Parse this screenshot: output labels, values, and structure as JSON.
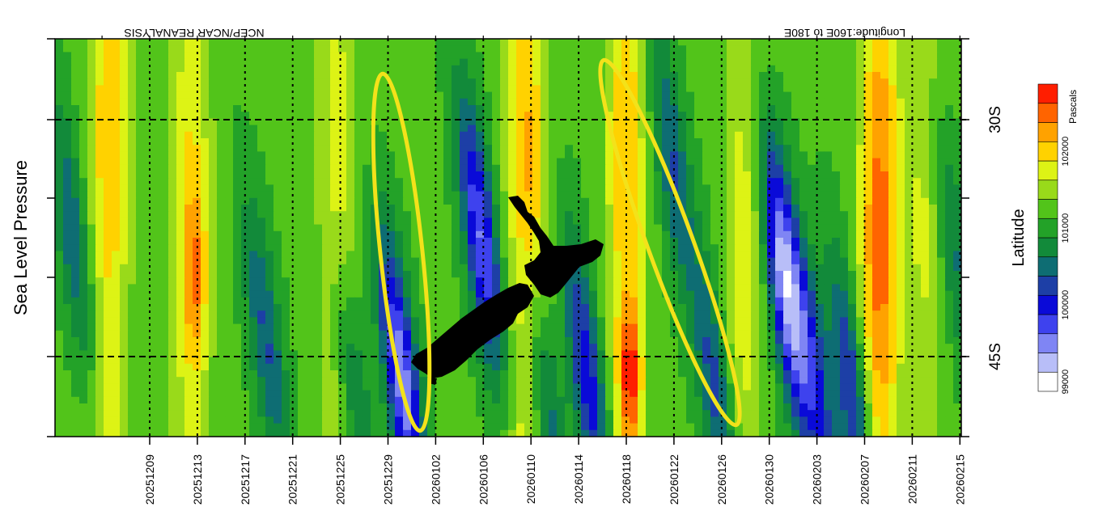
{
  "chart_data": {
    "type": "heatmap",
    "title_right": "Longitude:160E to 180E",
    "title_left": "NCEP/NCAR REANALYSIS",
    "y_title": "Sea Level Pressure",
    "latitude_title": "Latitude",
    "latitude_ticks": [
      "30S",
      "45S"
    ],
    "legend_unit": "Pascals",
    "legend_tick_labels": [
      "99000",
      "100000",
      "101000",
      "102000"
    ],
    "legend_levels": [
      99000,
      99250,
      99500,
      99750,
      100000,
      100250,
      100500,
      100750,
      101000,
      101250,
      101500,
      101750,
      102000,
      102250,
      102500,
      102750
    ],
    "legend_colors": [
      "#ffffff",
      "#b8bef8",
      "#7f85f4",
      "#3e42ee",
      "#0a0ad8",
      "#1d3fa6",
      "#0e6d73",
      "#128a3a",
      "#23a228",
      "#52c41a",
      "#99da1a",
      "#ddf315",
      "#ffd200",
      "#ffa200",
      "#ff6400",
      "#ff1e00"
    ],
    "x_tick_labels": [
      "20251209",
      "20251213",
      "20251217",
      "20251221",
      "20251225",
      "20251229",
      "20260102",
      "20260106",
      "20260110",
      "20260114",
      "20260118",
      "20260122",
      "20260126",
      "20260130",
      "20260203",
      "20260207",
      "20260211",
      "20260215"
    ],
    "grid": "dotted verticals at date ticks, dashed horizontals at 30S and 45S",
    "annotations": [
      "two yellow ellipses",
      "map of New Zealand (black silhouette)"
    ]
  }
}
